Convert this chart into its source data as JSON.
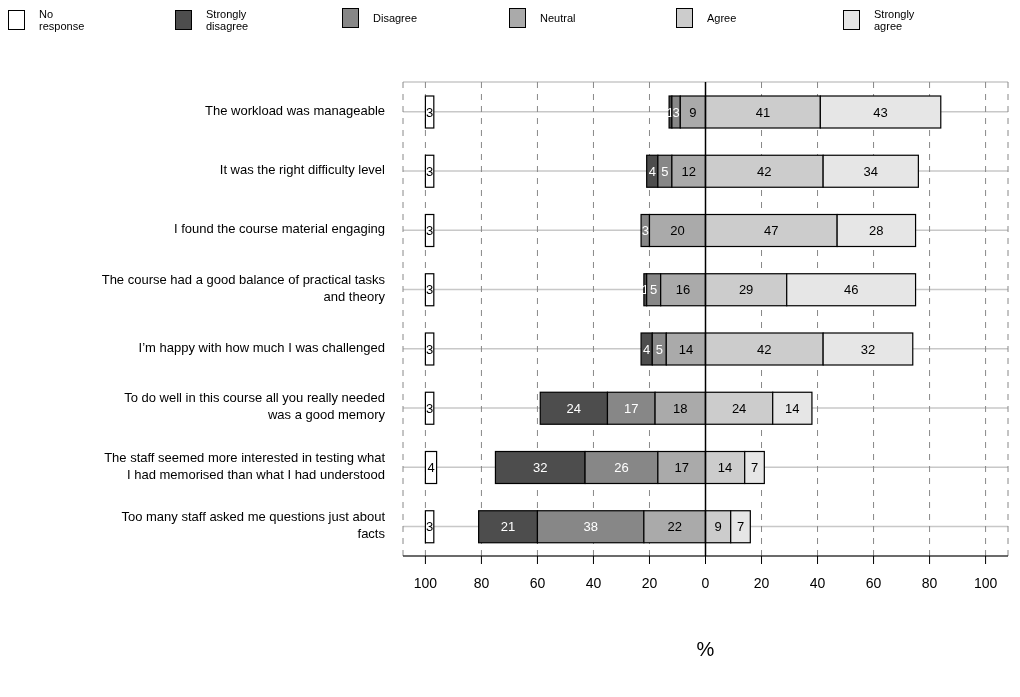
{
  "chart_data": {
    "type": "bar",
    "orientation": "horizontal",
    "xlabel": "%",
    "legend": "top",
    "grid": true,
    "categories": [
      "The workload was manageable",
      "It was the right difficulty level",
      "I found the course material engaging",
      "The course had a good balance of practical tasks and theory",
      "I’m happy with how much I was challenged",
      "To do well in this course all you really needed was a good memory",
      "The staff seemed more interested in testing what I had memorised than what I had understood",
      "Too many staff asked me questions just about facts"
    ],
    "xlim": [
      -108,
      108
    ],
    "xticks": [
      {
        "value": -100,
        "label": "100"
      },
      {
        "value": -80,
        "label": "80"
      },
      {
        "value": -60,
        "label": "60"
      },
      {
        "value": -40,
        "label": "40"
      },
      {
        "value": -20,
        "label": "20"
      },
      0,
      20,
      40,
      60,
      80,
      100
    ],
    "ref_lines": [
      {
        "axis": "x",
        "value": 0,
        "color": "#000000"
      }
    ],
    "data_labels": true,
    "series": [
      {
        "name": "No response",
        "color": "#ffffff",
        "base": [
          -100,
          -100,
          -100,
          -100,
          -100,
          -100,
          -100,
          -100
        ],
        "values": [
          3,
          3,
          3,
          3,
          3,
          3,
          4,
          3
        ]
      },
      {
        "name": "Strongly disagree",
        "color": "#4d4d4d",
        "base": [
          -13,
          -21,
          null,
          -22,
          -23,
          -59,
          -75,
          -81
        ],
        "values": [
          1,
          4,
          null,
          1,
          4,
          24,
          32,
          21
        ]
      },
      {
        "name": "Disagree",
        "color": "#878787",
        "base": [
          -12,
          -17,
          -23,
          -21,
          -19,
          -35,
          -43,
          -60
        ],
        "values": [
          3,
          5,
          3,
          5,
          5,
          17,
          26,
          38
        ]
      },
      {
        "name": "Neutral",
        "color": "#aaaaaa",
        "base": [
          -9,
          -12,
          -20,
          -16,
          -14,
          -18,
          -17,
          -22
        ],
        "values": [
          9,
          12,
          20,
          16,
          14,
          18,
          17,
          22
        ]
      },
      {
        "name": "Agree",
        "color": "#cccccc",
        "base": [
          0,
          0,
          0,
          0,
          0,
          0,
          0,
          0
        ],
        "values": [
          41,
          42,
          47,
          29,
          42,
          24,
          14,
          9
        ]
      },
      {
        "name": "Strongly agree",
        "color": "#e6e6e6",
        "base": [
          41,
          42,
          47,
          29,
          42,
          24,
          14,
          9
        ],
        "values": [
          43,
          34,
          28,
          46,
          32,
          14,
          7,
          7
        ]
      }
    ]
  }
}
